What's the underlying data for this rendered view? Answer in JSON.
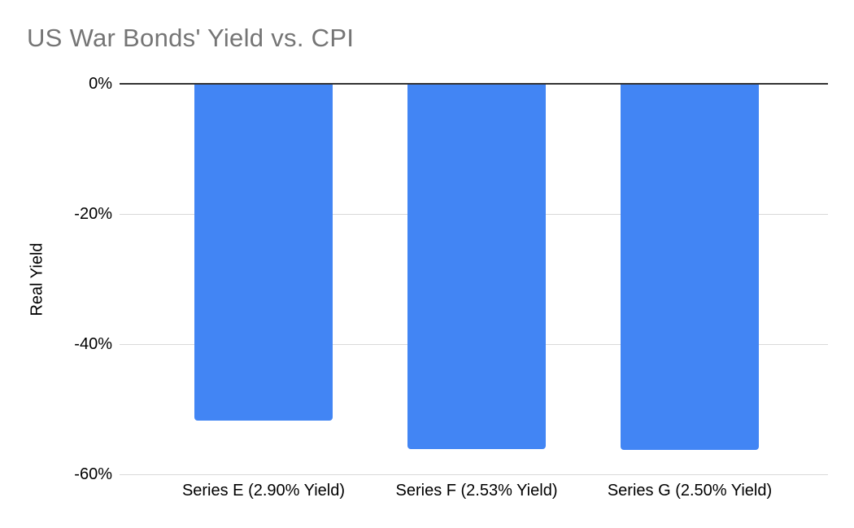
{
  "chart_data": {
    "type": "bar",
    "title": "US War Bonds' Yield vs. CPI",
    "xlabel": "",
    "ylabel": "Real Yield",
    "categories": [
      "Series E (2.90% Yield)",
      "Series F (2.53% Yield)",
      "Series G (2.50% Yield)"
    ],
    "values": [
      -51.8,
      -56.1,
      -56.2
    ],
    "unit": "%",
    "ylim": [
      -60,
      0
    ],
    "yticks": [
      0,
      -20,
      -40,
      -60
    ],
    "ytick_labels": [
      "0%",
      "-20%",
      "-40%",
      "-60%"
    ],
    "grid": true,
    "legend_position": "none",
    "colors": {
      "bar": "#4285F4",
      "title": "#757575",
      "gridline": "#D9D9D9",
      "baseline": "#333333",
      "axis_text": "#000000",
      "background": "#FFFFFF"
    }
  }
}
